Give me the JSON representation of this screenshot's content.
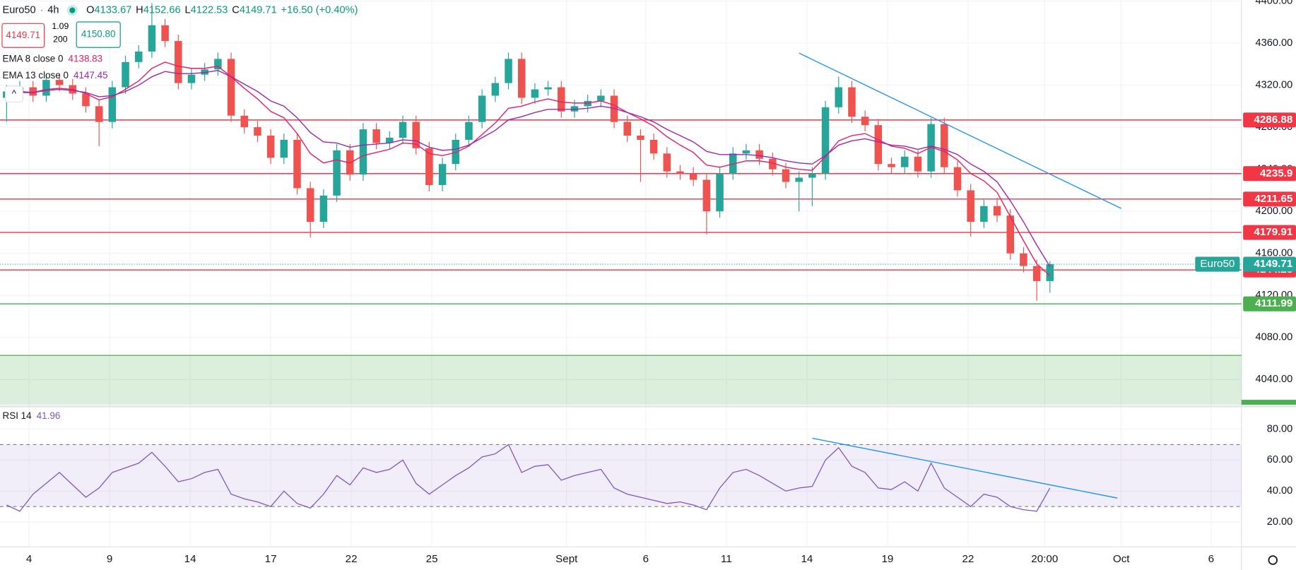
{
  "chart_data": {
    "type": "candlestick",
    "symbol": "Euro50",
    "interval": "4h",
    "ohlc_labels": [
      "O",
      "H",
      "L",
      "C"
    ],
    "change": "+16.50 (+0.40%)",
    "trade_panel": {
      "sell": "4149.71",
      "spread": "1.09",
      "quantity": "200",
      "buy": "4150.80"
    },
    "open": [
      4308,
      4314,
      4318,
      4310,
      4325,
      4320,
      4312,
      4300,
      4285,
      4318,
      4342,
      4352,
      4377,
      4362,
      4322,
      4330,
      4335,
      4345,
      4291,
      4280,
      4272,
      4251,
      4268,
      4222,
      4190,
      4215,
      4258,
      4235,
      4278,
      4265,
      4270,
      4285,
      4260,
      4225,
      4245,
      4268,
      4285,
      4310,
      4322,
      4345,
      4308,
      4316,
      4318,
      4295,
      4300,
      4305,
      4310,
      4285,
      4272,
      4268,
      4255,
      4238,
      4236,
      4230,
      4200,
      4236,
      4255,
      4258,
      4250,
      4240,
      4228,
      4232,
      4236,
      4299,
      4318,
      4290,
      4282,
      4245,
      4242,
      4252,
      4238,
      4283,
      4242,
      4220,
      4190,
      4205,
      4196,
      4160,
      4148,
      4133.67
    ],
    "high": [
      4320,
      4324,
      4324,
      4331,
      4331,
      4326,
      4318,
      4306,
      4324,
      4348,
      4358,
      4398,
      4383,
      4368,
      4336,
      4341,
      4351,
      4351,
      4297,
      4286,
      4278,
      4274,
      4274,
      4228,
      4221,
      4264,
      4264,
      4284,
      4284,
      4276,
      4291,
      4291,
      4266,
      4251,
      4274,
      4291,
      4316,
      4328,
      4351,
      4351,
      4322,
      4324,
      4324,
      4306,
      4311,
      4316,
      4316,
      4291,
      4278,
      4274,
      4261,
      4244,
      4242,
      4236,
      4242,
      4261,
      4264,
      4264,
      4256,
      4246,
      4238,
      4242,
      4305,
      4328,
      4324,
      4296,
      4288,
      4251,
      4258,
      4258,
      4289,
      4289,
      4248,
      4226,
      4211,
      4213,
      4202,
      4166,
      4154,
      4152.66
    ],
    "low": [
      4285,
      4308,
      4304,
      4304,
      4314,
      4306,
      4294,
      4262,
      4279,
      4312,
      4336,
      4346,
      4356,
      4316,
      4316,
      4324,
      4329,
      4285,
      4274,
      4266,
      4245,
      4245,
      4216,
      4175,
      4184,
      4209,
      4229,
      4229,
      4259,
      4259,
      4264,
      4254,
      4219,
      4219,
      4239,
      4262,
      4279,
      4304,
      4316,
      4302,
      4302,
      4310,
      4289,
      4289,
      4294,
      4299,
      4279,
      4266,
      4228,
      4249,
      4232,
      4230,
      4224,
      4178,
      4194,
      4230,
      4249,
      4244,
      4234,
      4222,
      4200,
      4205,
      4230,
      4293,
      4284,
      4276,
      4239,
      4236,
      4236,
      4232,
      4232,
      4236,
      4214,
      4176,
      4184,
      4190,
      4154,
      4142,
      4115,
      4122.53
    ],
    "close": [
      4314,
      4318,
      4310,
      4325,
      4320,
      4312,
      4300,
      4285,
      4318,
      4342,
      4352,
      4377,
      4362,
      4322,
      4330,
      4335,
      4345,
      4291,
      4280,
      4272,
      4251,
      4268,
      4222,
      4190,
      4215,
      4258,
      4235,
      4278,
      4265,
      4270,
      4285,
      4260,
      4225,
      4245,
      4268,
      4285,
      4310,
      4322,
      4345,
      4308,
      4316,
      4318,
      4295,
      4300,
      4305,
      4310,
      4285,
      4272,
      4268,
      4255,
      4238,
      4236,
      4230,
      4200,
      4236,
      4255,
      4258,
      4250,
      4240,
      4228,
      4232,
      4236,
      4299,
      4318,
      4290,
      4282,
      4245,
      4242,
      4252,
      4238,
      4283,
      4242,
      4220,
      4190,
      4205,
      4196,
      4160,
      4148,
      4133.67,
      4149.71
    ],
    "up_color": "#26a69a",
    "down_color": "#ef5350",
    "xlim": [
      -0.5,
      93.5
    ],
    "xticks": [
      {
        "value": 1.7,
        "label": "4"
      },
      {
        "value": 7.8,
        "label": "9"
      },
      {
        "value": 13.9,
        "label": "14"
      },
      {
        "value": 20,
        "label": "17"
      },
      {
        "value": 26.1,
        "label": "22"
      },
      {
        "value": 32.2,
        "label": "25"
      },
      {
        "value": 42.4,
        "label": "Sept"
      },
      {
        "value": 48.4,
        "label": "6"
      },
      {
        "value": 54.5,
        "label": "11"
      },
      {
        "value": 60.6,
        "label": "14"
      },
      {
        "value": 66.7,
        "label": "19"
      },
      {
        "value": 72.8,
        "label": "22"
      },
      {
        "value": 78.6,
        "label": "20:00"
      },
      {
        "value": 84.4,
        "label": "Oct"
      },
      {
        "value": 91.2,
        "label": "6"
      }
    ],
    "ylim": [
      4016,
      4401
    ],
    "yticks": [
      {
        "value": 4400,
        "label": "4400.00"
      },
      {
        "value": 4360,
        "label": "4360.00"
      },
      {
        "value": 4320,
        "label": "4320.00"
      },
      {
        "value": 4280,
        "label": "4280.00"
      },
      {
        "value": 4240,
        "label": "4240.00"
      },
      {
        "value": 4200,
        "label": "4200.00"
      },
      {
        "value": 4160,
        "label": "4160.00"
      },
      {
        "value": 4120,
        "label": "4120.00"
      },
      {
        "value": 4080,
        "label": "4080.00"
      },
      {
        "value": 4040,
        "label": "4040.00"
      }
    ],
    "grid": true,
    "series": [
      {
        "name": "EMA 8 close 0",
        "color": "#e91e63",
        "values": [
          4312,
          4314,
          4313,
          4316,
          4317,
          4316,
          4312,
          4306,
          4309,
          4316,
          4324,
          4336,
          4342,
          4338,
          4336,
          4336,
          4338,
          4328,
          4317,
          4307,
          4295,
          4289,
          4274,
          4255,
          4246,
          4249,
          4246,
          4253,
          4256,
          4259,
          4265,
          4264,
          4255,
          4253,
          4256,
          4262,
          4273,
          4284,
          4298,
          4300,
          4304,
          4307,
          4304,
          4303,
          4303,
          4305,
          4301,
          4294,
          4288,
          4281,
          4271,
          4263,
          4256,
          4244,
          4242,
          4245,
          4248,
          4248,
          4246,
          4242,
          4240,
          4239,
          4252,
          4267,
          4272,
          4274,
          4268,
          4262,
          4260,
          4255,
          4261,
          4257,
          4249,
          4236,
          4229,
          4218,
          4195,
          4172,
          4150,
          4138.83
        ]
      },
      {
        "name": "EMA 13 close 0",
        "color": "#9c27b0",
        "values": [
          4312,
          4313,
          4313,
          4315,
          4316,
          4315,
          4313,
          4309,
          4310,
          4314,
          4320,
          4328,
          4333,
          4331,
          4331,
          4332,
          4334,
          4328,
          4321,
          4314,
          4305,
          4300,
          4289,
          4275,
          4266,
          4265,
          4261,
          4263,
          4264,
          4265,
          4268,
          4267,
          4261,
          4258,
          4259,
          4263,
          4270,
          4277,
          4287,
          4290,
          4294,
          4297,
          4297,
          4297,
          4298,
          4300,
          4298,
          4294,
          4290,
          4285,
          4278,
          4272,
          4266,
          4257,
          4254,
          4254,
          4254,
          4253,
          4251,
          4248,
          4246,
          4245,
          4253,
          4263,
          4267,
          4269,
          4266,
          4263,
          4262,
          4259,
          4262,
          4259,
          4254,
          4245,
          4238,
          4228,
          4210,
          4190,
          4168,
          4147.45
        ]
      }
    ],
    "levels": [
      {
        "value": 4286.88,
        "color": "#f23645"
      },
      {
        "value": 4235.9,
        "color": "#f23645"
      },
      {
        "value": 4211.65,
        "color": "#f23645"
      },
      {
        "value": 4179.91,
        "color": "#f23645"
      },
      {
        "value": 4144.23,
        "color": "#f23645"
      },
      {
        "value": 4111.99,
        "color": "#4caf50"
      }
    ],
    "zone": {
      "ylim": [
        4016,
        4063
      ],
      "color": "#4caf50"
    },
    "trendline": {
      "x": [
        60.0,
        84.4
      ],
      "y": [
        4350.5,
        4202.7
      ],
      "color": "#2196f3"
    },
    "rsi": {
      "name": "RSI 14",
      "color": "#7e57c2",
      "values": [
        31,
        27,
        38,
        45,
        52,
        44,
        36,
        42,
        52,
        55,
        58,
        65,
        56,
        46,
        48,
        52,
        54,
        38,
        35,
        33,
        30,
        40,
        32,
        29,
        38,
        50,
        44,
        55,
        52,
        54,
        60,
        45,
        38,
        44,
        50,
        55,
        62,
        64,
        70,
        52,
        56,
        57,
        47,
        50,
        52,
        54,
        42,
        38,
        36,
        34,
        32,
        33,
        31,
        28,
        42,
        52,
        54,
        50,
        45,
        40,
        42,
        43,
        60,
        68,
        56,
        52,
        42,
        41,
        46,
        40,
        58,
        42,
        36,
        30,
        38,
        36,
        30,
        28,
        27,
        41.96
      ],
      "ylim": [
        4,
        93
      ],
      "yticks": [
        {
          "value": 80,
          "label": "80.00"
        },
        {
          "value": 60,
          "label": "60.00"
        },
        {
          "value": 40,
          "label": "40.00"
        },
        {
          "value": 20,
          "label": "20.00"
        }
      ],
      "bands": [
        30,
        70
      ],
      "trendline": {
        "x": [
          61.0,
          84.1
        ],
        "y": [
          74.1,
          35.5
        ],
        "color": "#2196f3"
      }
    }
  }
}
